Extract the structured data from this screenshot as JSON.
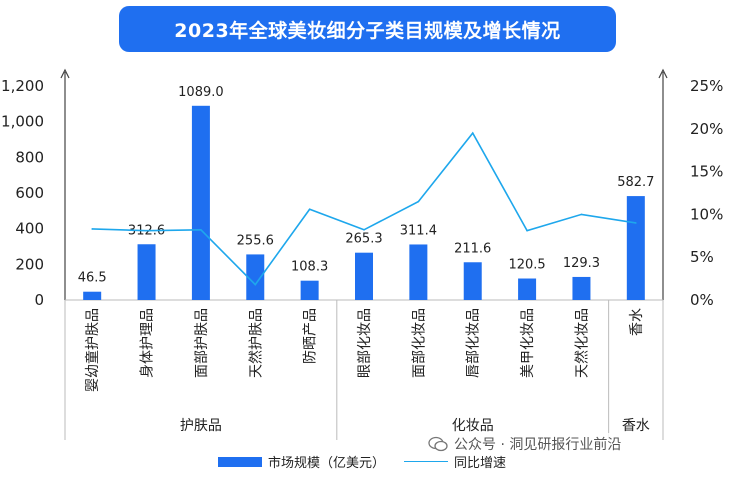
{
  "title": "2023年全球美妆细分子类目规模及增长情况",
  "chart_data": {
    "type": "bar",
    "categories": [
      "婴幼童护肤品",
      "身体护理品",
      "面部护肤品",
      "天然护肤品",
      "防晒产品",
      "眼部化妆品",
      "面部化妆品",
      "唇部化妆品",
      "美甲化妆品",
      "天然化妆品",
      "香水"
    ],
    "groups": [
      {
        "label": "护肤品",
        "count": 5
      },
      {
        "label": "化妆品",
        "count": 5
      },
      {
        "label": "香水",
        "count": 1
      }
    ],
    "series": [
      {
        "name": "市场规模（亿美元）",
        "type": "bar",
        "axis": "left",
        "values": [
          46.5,
          312.6,
          1089.0,
          255.6,
          108.3,
          265.3,
          311.4,
          211.6,
          120.5,
          129.3,
          582.7
        ],
        "labels": [
          "46.5",
          "312.6",
          "1089.0",
          "255.6",
          "108.3",
          "265.3",
          "311.4",
          "211.6",
          "120.5",
          "129.3",
          "582.7"
        ]
      },
      {
        "name": "同比增速",
        "type": "line",
        "axis": "right",
        "values": [
          8.3,
          8.1,
          8.2,
          1.8,
          10.6,
          8.2,
          11.5,
          19.5,
          8.1,
          10.0,
          9.0
        ]
      }
    ],
    "y_left": {
      "min": 0,
      "max": 1200,
      "ticks": [
        "0",
        "200",
        "400",
        "600",
        "800",
        "1,000",
        "1,200"
      ]
    },
    "y_right": {
      "min": 0,
      "max": 25,
      "ticks": [
        "0%",
        "5%",
        "10%",
        "15%",
        "20%",
        "25%"
      ]
    },
    "colors": {
      "bar": "#1f6ff0",
      "line": "#1ea7ec"
    }
  },
  "legend": {
    "bar_label": "市场规模（亿美元）",
    "line_label": "同比增速"
  },
  "watermark": "公众号 · 洞见研报行业前沿"
}
